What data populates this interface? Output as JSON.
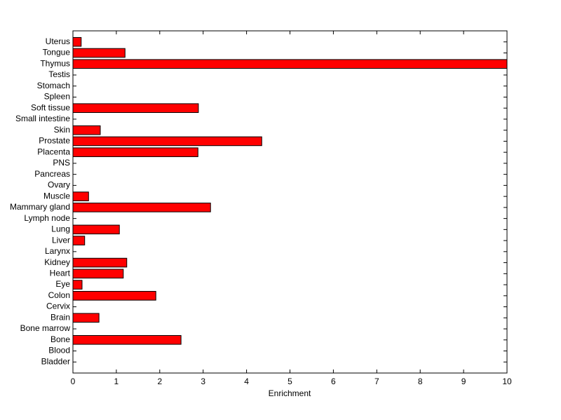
{
  "chart_data": {
    "type": "barh",
    "categories": [
      "Uterus",
      "Tongue",
      "Thymus",
      "Testis",
      "Stomach",
      "Spleen",
      "Soft tissue",
      "Small intestine",
      "Skin",
      "Prostate",
      "Placenta",
      "PNS",
      "Pancreas",
      "Ovary",
      "Muscle",
      "Mammary gland",
      "Lymph node",
      "Lung",
      "Liver",
      "Larynx",
      "Kidney",
      "Heart",
      "Eye",
      "Colon",
      "Cervix",
      "Brain",
      "Bone marrow",
      "Bone",
      "Blood",
      "Bladder"
    ],
    "values": [
      0.19,
      1.2,
      10,
      0,
      0,
      0,
      2.89,
      0,
      0.63,
      4.35,
      2.88,
      0,
      0,
      0,
      0.36,
      3.17,
      0,
      1.07,
      0.27,
      0,
      1.24,
      1.16,
      0.21,
      1.91,
      0,
      0.6,
      0,
      2.49,
      0,
      0
    ],
    "color": "#ff0000",
    "xlabel": "Enrichment",
    "xlim": [
      0,
      10
    ],
    "xticks": [
      0,
      1,
      2,
      3,
      4,
      5,
      6,
      7,
      8,
      9,
      10
    ]
  }
}
